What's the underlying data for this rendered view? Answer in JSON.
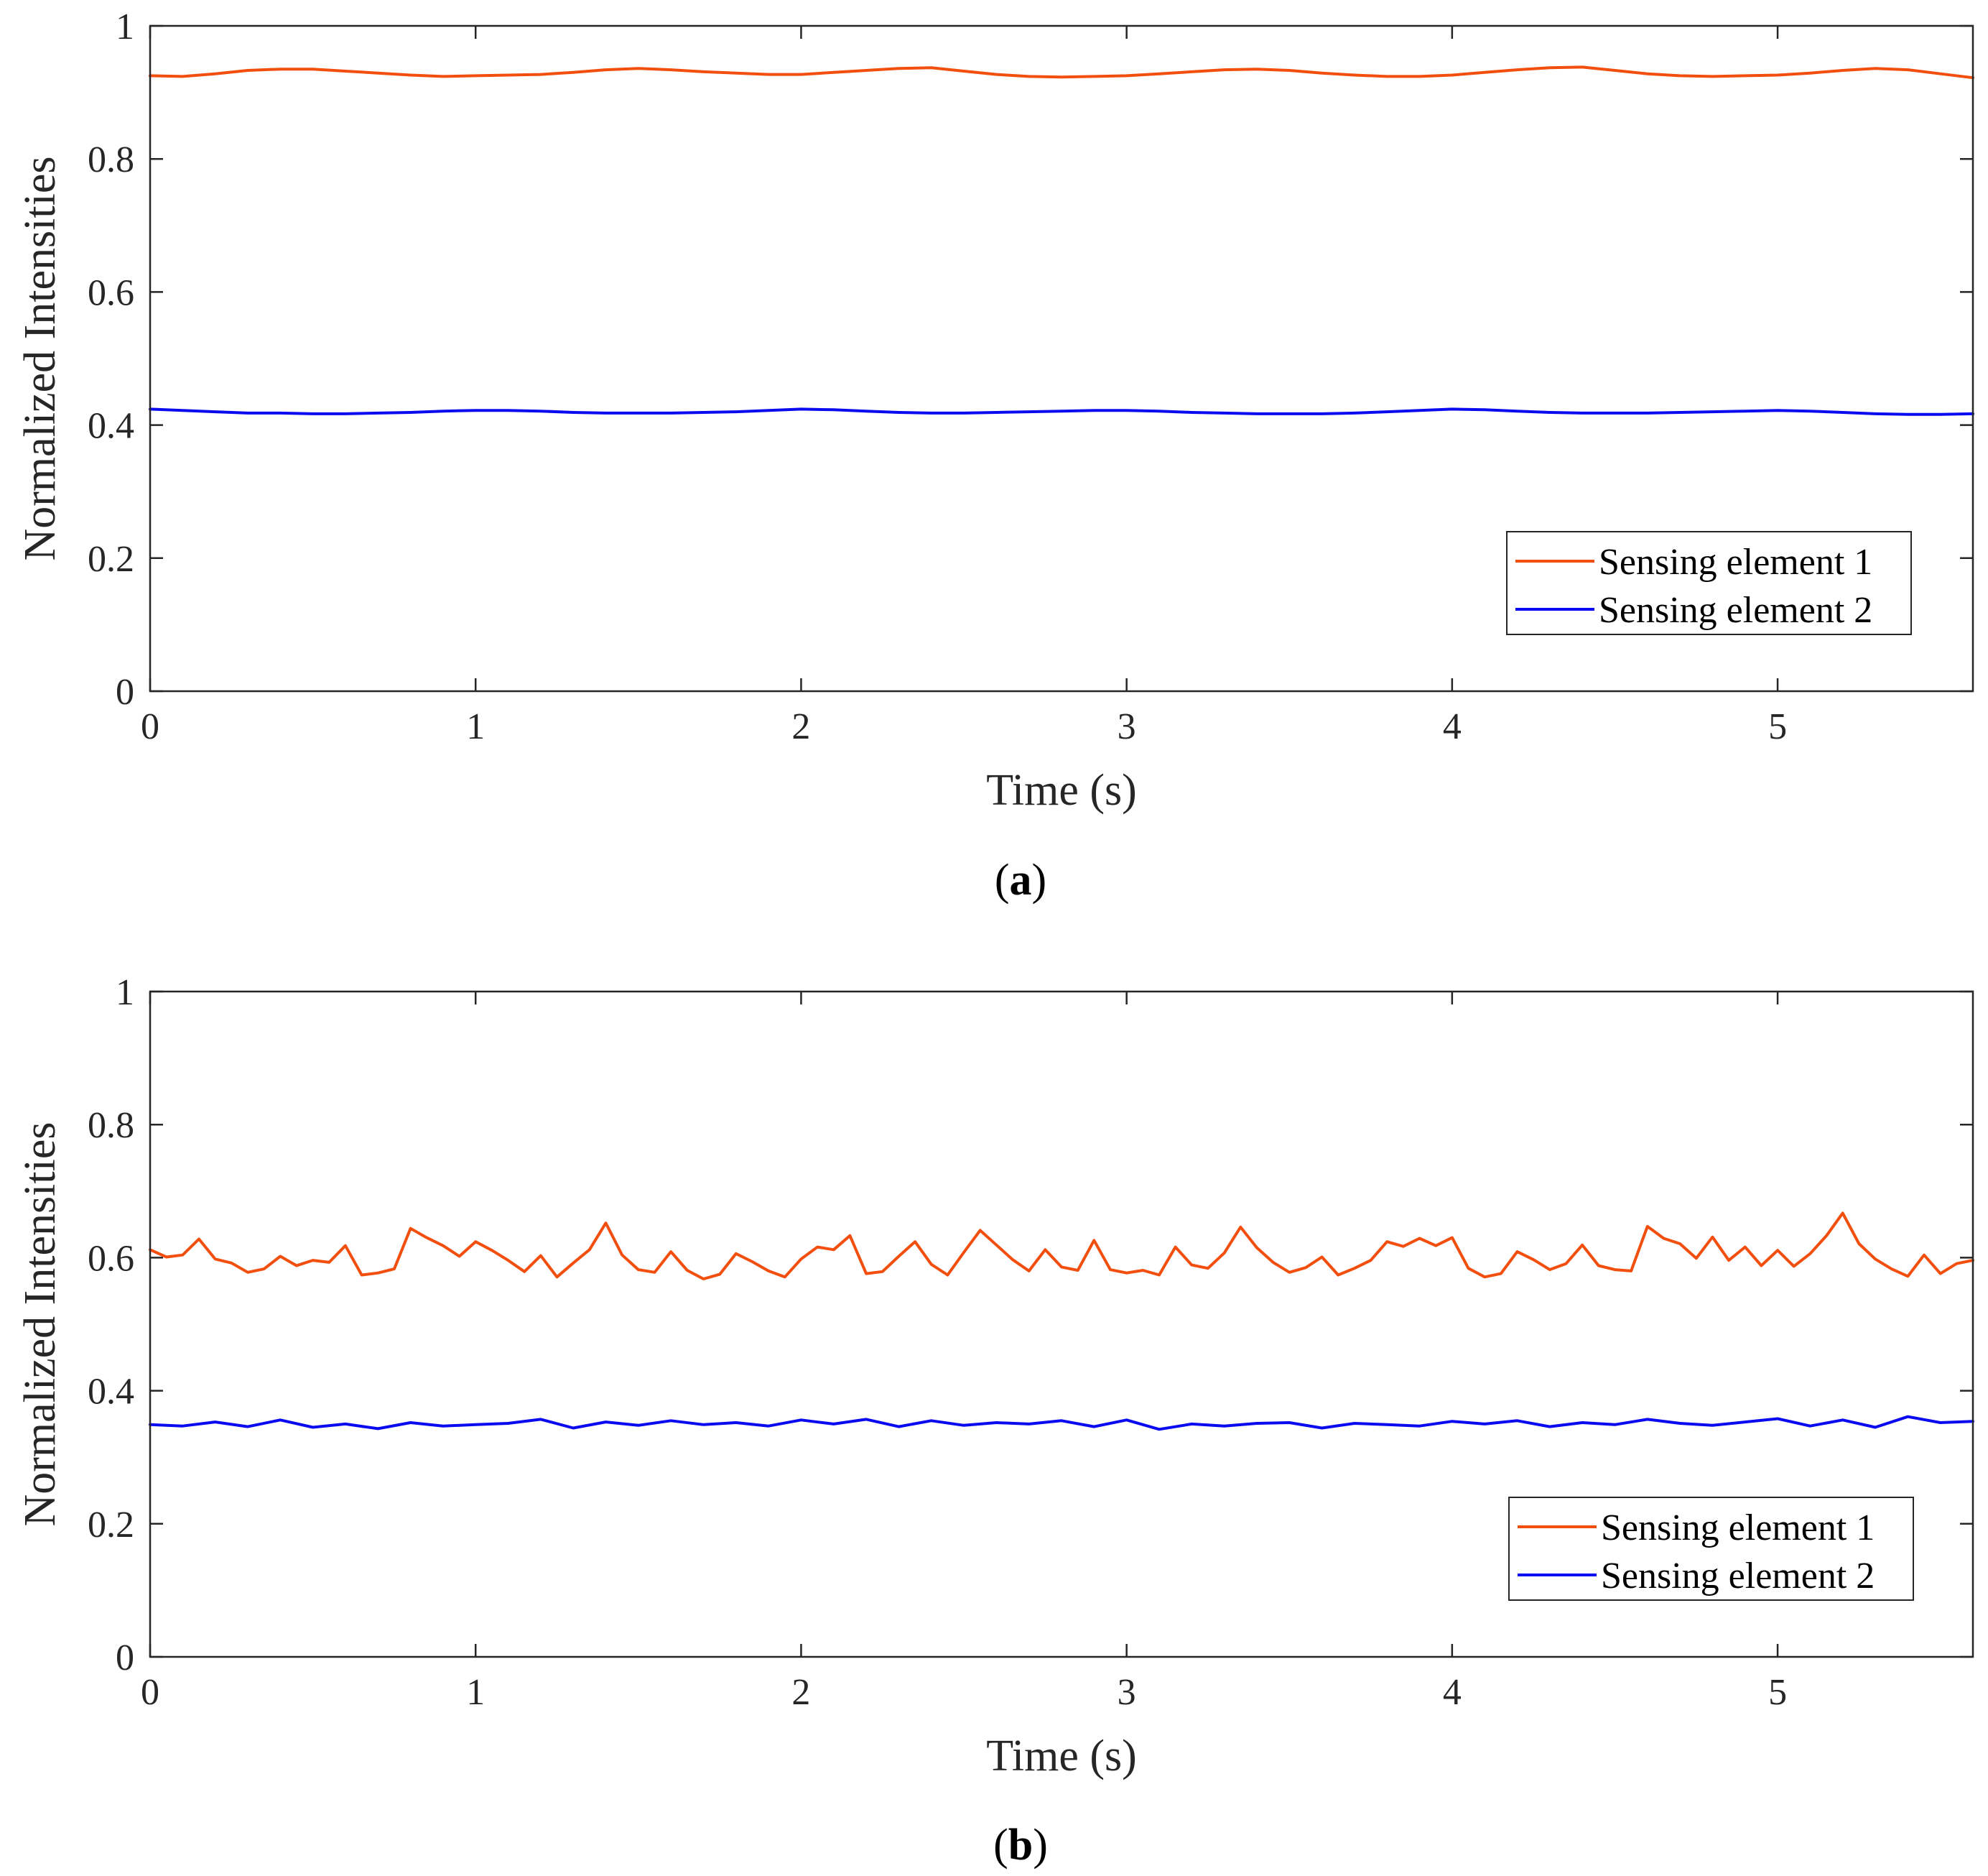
{
  "colors": {
    "series1": "#f24f0f",
    "series2": "#0a0af0",
    "axis": "#262626"
  },
  "chart_data": [
    {
      "type": "line",
      "panel_label": "a",
      "xlabel": "Time (s)",
      "ylabel": "Normalized Intensities",
      "xlim": [
        0,
        5.6
      ],
      "ylim": [
        0,
        1
      ],
      "xticks": [
        0,
        1,
        2,
        3,
        4,
        5
      ],
      "yticks": [
        0,
        0.2,
        0.4,
        0.6,
        0.8,
        1
      ],
      "xtick_labels": [
        "0",
        "1",
        "2",
        "3",
        "4",
        "5"
      ],
      "ytick_labels": [
        "0",
        "0.2",
        "0.4",
        "0.6",
        "0.8",
        "1"
      ],
      "legend_location": "lower-right",
      "series": [
        {
          "name": "Sensing element 1",
          "color": "#f24f0f",
          "x": [
            0,
            0.1,
            0.2,
            0.3,
            0.4,
            0.5,
            0.6,
            0.7,
            0.8,
            0.9,
            1.0,
            1.1,
            1.2,
            1.3,
            1.4,
            1.5,
            1.6,
            1.7,
            1.8,
            1.9,
            2.0,
            2.1,
            2.2,
            2.3,
            2.4,
            2.5,
            2.6,
            2.7,
            2.8,
            2.9,
            3.0,
            3.1,
            3.2,
            3.3,
            3.4,
            3.5,
            3.6,
            3.7,
            3.8,
            3.9,
            4.0,
            4.1,
            4.2,
            4.3,
            4.4,
            4.5,
            4.6,
            4.7,
            4.8,
            4.9,
            5.0,
            5.1,
            5.2,
            5.3,
            5.4,
            5.5,
            5.6
          ],
          "values": [
            0.925,
            0.924,
            0.928,
            0.933,
            0.935,
            0.935,
            0.932,
            0.929,
            0.926,
            0.924,
            0.925,
            0.926,
            0.927,
            0.93,
            0.934,
            0.936,
            0.934,
            0.931,
            0.929,
            0.927,
            0.927,
            0.93,
            0.933,
            0.936,
            0.937,
            0.932,
            0.927,
            0.924,
            0.923,
            0.924,
            0.925,
            0.928,
            0.931,
            0.934,
            0.935,
            0.933,
            0.929,
            0.926,
            0.924,
            0.924,
            0.926,
            0.93,
            0.934,
            0.937,
            0.938,
            0.933,
            0.928,
            0.925,
            0.924,
            0.925,
            0.926,
            0.929,
            0.933,
            0.936,
            0.934,
            0.928,
            0.922
          ]
        },
        {
          "name": "Sensing element 2",
          "color": "#0a0af0",
          "x": [
            0,
            0.1,
            0.2,
            0.3,
            0.4,
            0.5,
            0.6,
            0.7,
            0.8,
            0.9,
            1.0,
            1.1,
            1.2,
            1.3,
            1.4,
            1.5,
            1.6,
            1.7,
            1.8,
            1.9,
            2.0,
            2.1,
            2.2,
            2.3,
            2.4,
            2.5,
            2.6,
            2.7,
            2.8,
            2.9,
            3.0,
            3.1,
            3.2,
            3.3,
            3.4,
            3.5,
            3.6,
            3.7,
            3.8,
            3.9,
            4.0,
            4.1,
            4.2,
            4.3,
            4.4,
            4.5,
            4.6,
            4.7,
            4.8,
            4.9,
            5.0,
            5.1,
            5.2,
            5.3,
            5.4,
            5.5,
            5.6
          ],
          "values": [
            0.424,
            0.422,
            0.42,
            0.418,
            0.418,
            0.417,
            0.417,
            0.418,
            0.419,
            0.421,
            0.422,
            0.422,
            0.421,
            0.419,
            0.418,
            0.418,
            0.418,
            0.419,
            0.42,
            0.422,
            0.424,
            0.423,
            0.421,
            0.419,
            0.418,
            0.418,
            0.419,
            0.42,
            0.421,
            0.422,
            0.422,
            0.421,
            0.419,
            0.418,
            0.417,
            0.417,
            0.417,
            0.418,
            0.42,
            0.422,
            0.424,
            0.423,
            0.421,
            0.419,
            0.418,
            0.418,
            0.418,
            0.419,
            0.42,
            0.421,
            0.422,
            0.421,
            0.419,
            0.417,
            0.416,
            0.416,
            0.417
          ]
        }
      ]
    },
    {
      "type": "line",
      "panel_label": "b",
      "xlabel": "Time (s)",
      "ylabel": "Normalized Intensities",
      "xlim": [
        0,
        5.6
      ],
      "ylim": [
        0,
        1
      ],
      "xticks": [
        0,
        1,
        2,
        3,
        4,
        5
      ],
      "yticks": [
        0,
        0.2,
        0.4,
        0.6,
        0.8,
        1
      ],
      "xtick_labels": [
        "0",
        "1",
        "2",
        "3",
        "4",
        "5"
      ],
      "ytick_labels": [
        "0",
        "0.2",
        "0.4",
        "0.6",
        "0.8",
        "1"
      ],
      "legend_location": "lower-right",
      "series": [
        {
          "name": "Sensing element 1",
          "color": "#f24f0f",
          "x": [
            0.0,
            0.05,
            0.1,
            0.15,
            0.2,
            0.25,
            0.3,
            0.35,
            0.4,
            0.45,
            0.5,
            0.55,
            0.6,
            0.65,
            0.7,
            0.75,
            0.8,
            0.85,
            0.9,
            0.95,
            1.0,
            1.05,
            1.1,
            1.15,
            1.2,
            1.25,
            1.3,
            1.35,
            1.4,
            1.45,
            1.5,
            1.55,
            1.6,
            1.65,
            1.7,
            1.75,
            1.8,
            1.85,
            1.9,
            1.95,
            2.0,
            2.05,
            2.1,
            2.15,
            2.2,
            2.25,
            2.3,
            2.35,
            2.4,
            2.45,
            2.5,
            2.55,
            2.6,
            2.65,
            2.7,
            2.75,
            2.8,
            2.85,
            2.9,
            2.95,
            3.0,
            3.05,
            3.1,
            3.15,
            3.2,
            3.25,
            3.3,
            3.35,
            3.4,
            3.45,
            3.5,
            3.55,
            3.6,
            3.65,
            3.7,
            3.75,
            3.8,
            3.85,
            3.9,
            3.95,
            4.0,
            4.05,
            4.1,
            4.15,
            4.2,
            4.25,
            4.3,
            4.35,
            4.4,
            4.45,
            4.5,
            4.55,
            4.6,
            4.65,
            4.7,
            4.75,
            4.8,
            4.85,
            4.9,
            4.95,
            5.0,
            5.05,
            5.1,
            5.15,
            5.2,
            5.25,
            5.3,
            5.35,
            5.4,
            5.45,
            5.5,
            5.55,
            5.6
          ],
          "values": [
            0.612,
            0.601,
            0.604,
            0.628,
            0.598,
            0.592,
            0.578,
            0.583,
            0.602,
            0.588,
            0.596,
            0.593,
            0.618,
            0.574,
            0.577,
            0.583,
            0.644,
            0.63,
            0.618,
            0.602,
            0.624,
            0.611,
            0.596,
            0.579,
            0.603,
            0.571,
            0.592,
            0.612,
            0.652,
            0.604,
            0.582,
            0.578,
            0.609,
            0.581,
            0.568,
            0.575,
            0.606,
            0.594,
            0.58,
            0.571,
            0.598,
            0.616,
            0.612,
            0.633,
            0.576,
            0.579,
            0.602,
            0.624,
            0.59,
            0.574,
            0.608,
            0.641,
            0.619,
            0.597,
            0.58,
            0.612,
            0.586,
            0.581,
            0.626,
            0.582,
            0.577,
            0.581,
            0.574,
            0.616,
            0.589,
            0.584,
            0.607,
            0.646,
            0.615,
            0.593,
            0.578,
            0.585,
            0.601,
            0.574,
            0.584,
            0.596,
            0.624,
            0.617,
            0.629,
            0.618,
            0.63,
            0.584,
            0.571,
            0.576,
            0.609,
            0.597,
            0.582,
            0.591,
            0.619,
            0.588,
            0.582,
            0.58,
            0.647,
            0.629,
            0.621,
            0.599,
            0.631,
            0.596,
            0.616,
            0.588,
            0.611,
            0.587,
            0.606,
            0.633,
            0.667,
            0.621,
            0.598,
            0.583,
            0.572,
            0.604,
            0.576,
            0.591,
            0.596
          ]
        },
        {
          "name": "Sensing element 2",
          "color": "#0a0af0",
          "x": [
            0.0,
            0.1,
            0.2,
            0.3,
            0.4,
            0.5,
            0.6,
            0.7,
            0.8,
            0.9,
            1.0,
            1.1,
            1.2,
            1.3,
            1.4,
            1.5,
            1.6,
            1.7,
            1.8,
            1.9,
            2.0,
            2.1,
            2.2,
            2.3,
            2.4,
            2.5,
            2.6,
            2.7,
            2.8,
            2.9,
            3.0,
            3.1,
            3.2,
            3.3,
            3.4,
            3.5,
            3.6,
            3.7,
            3.8,
            3.9,
            4.0,
            4.1,
            4.2,
            4.3,
            4.4,
            4.5,
            4.6,
            4.7,
            4.8,
            4.9,
            5.0,
            5.1,
            5.2,
            5.3,
            5.4,
            5.5,
            5.6
          ],
          "values": [
            0.349,
            0.347,
            0.353,
            0.346,
            0.356,
            0.345,
            0.35,
            0.343,
            0.352,
            0.347,
            0.349,
            0.351,
            0.357,
            0.344,
            0.353,
            0.348,
            0.355,
            0.349,
            0.352,
            0.347,
            0.356,
            0.35,
            0.357,
            0.346,
            0.355,
            0.348,
            0.352,
            0.35,
            0.355,
            0.346,
            0.356,
            0.342,
            0.35,
            0.347,
            0.351,
            0.352,
            0.344,
            0.351,
            0.349,
            0.347,
            0.354,
            0.35,
            0.355,
            0.346,
            0.352,
            0.349,
            0.357,
            0.351,
            0.348,
            0.353,
            0.358,
            0.347,
            0.356,
            0.345,
            0.361,
            0.352,
            0.354
          ]
        }
      ]
    }
  ]
}
